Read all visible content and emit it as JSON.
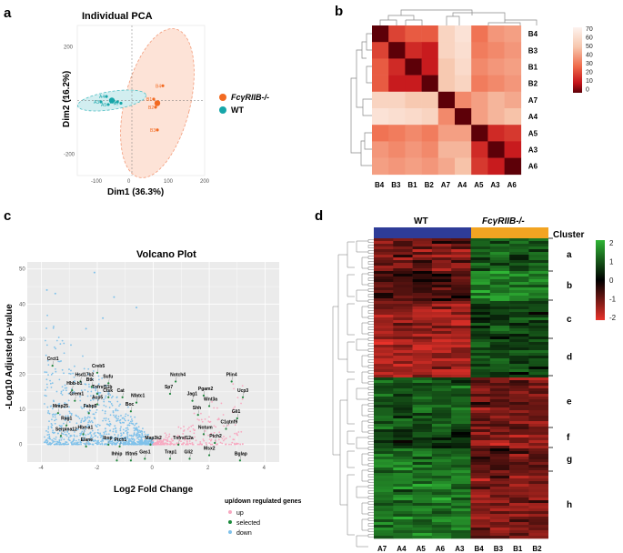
{
  "chart_data": [
    {
      "panel": "a",
      "type": "scatter",
      "title": "Individual PCA",
      "xlabel": "Dim1 (36.3%)",
      "ylabel": "Dim2 (16.2%)",
      "xlim": [
        -150,
        200
      ],
      "ylim": [
        -280,
        280
      ],
      "xticks": [
        "-100",
        "0",
        "100",
        "200"
      ],
      "yticks": [
        "200",
        "0",
        "-200"
      ],
      "series": [
        {
          "name": "FcγRIIB-/-",
          "color": "#f26a21",
          "points": [
            {
              "label": "B4",
              "x": 85,
              "y": 55
            },
            {
              "label": "B1",
              "x": 60,
              "y": 5
            },
            {
              "label": "B2",
              "x": 65,
              "y": -25
            },
            {
              "label": "B3",
              "x": 70,
              "y": -110
            }
          ],
          "centroid": {
            "x": 70,
            "y": -10
          }
        },
        {
          "name": "WT",
          "color": "#16a6a9",
          "points": [
            {
              "label": "A4",
              "x": -70,
              "y": 15
            },
            {
              "label": "A5",
              "x": -65,
              "y": -15
            },
            {
              "label": "A6",
              "x": -40,
              "y": -5
            },
            {
              "label": "A7",
              "x": -30,
              "y": -10
            },
            {
              "label": "A3",
              "x": -85,
              "y": -5
            }
          ],
          "centroid": {
            "x": -55,
            "y": 0
          }
        }
      ],
      "legend": [
        "FcγRIIB-/-",
        "WT"
      ]
    },
    {
      "panel": "b",
      "type": "heatmap",
      "labels": [
        "B4",
        "B3",
        "B1",
        "B2",
        "A7",
        "A4",
        "A5",
        "A3",
        "A6"
      ],
      "colorbar_ticks": [
        "70",
        "60",
        "50",
        "40",
        "30",
        "20",
        "10",
        "0"
      ],
      "matrix": [
        [
          0,
          20,
          25,
          25,
          55,
          62,
          30,
          38,
          40
        ],
        [
          20,
          0,
          15,
          12,
          55,
          60,
          32,
          35,
          38
        ],
        [
          25,
          15,
          0,
          12,
          50,
          58,
          35,
          38,
          40
        ],
        [
          25,
          12,
          12,
          0,
          50,
          55,
          32,
          35,
          38
        ],
        [
          55,
          55,
          50,
          50,
          0,
          35,
          40,
          45,
          42
        ],
        [
          62,
          60,
          58,
          55,
          35,
          0,
          40,
          45,
          48
        ],
        [
          30,
          32,
          35,
          32,
          40,
          40,
          0,
          15,
          18
        ],
        [
          38,
          35,
          38,
          35,
          45,
          45,
          15,
          0,
          12
        ],
        [
          40,
          38,
          40,
          38,
          42,
          48,
          18,
          12,
          0
        ]
      ]
    },
    {
      "panel": "c",
      "type": "scatter",
      "title": "Volcano Plot",
      "xlabel": "Log2 Fold Change",
      "ylabel": "-Log10 Adjusted p-value",
      "xlim": [
        -4.5,
        4.5
      ],
      "ylim": [
        -5,
        52
      ],
      "xticks": [
        "-4",
        "-2",
        "0",
        "2",
        "4"
      ],
      "yticks": [
        "50",
        "40",
        "30",
        "20",
        "10",
        "0"
      ],
      "legend_title": "up/down regulated genes",
      "legend": [
        {
          "name": "up",
          "color": "#f7a8c0"
        },
        {
          "name": "selected",
          "color": "#1a8a3a"
        },
        {
          "name": "down",
          "color": "#7fc1ea"
        }
      ],
      "genes_labeled": [
        {
          "name": "Crct1",
          "x": -3.6,
          "y": 24
        },
        {
          "name": "Creb5",
          "x": -2.0,
          "y": 22
        },
        {
          "name": "Hsd17b2",
          "x": -2.6,
          "y": 19.5
        },
        {
          "name": "Btk",
          "x": -2.2,
          "y": 18
        },
        {
          "name": "Hbb-b1",
          "x": -2.9,
          "y": 17
        },
        {
          "name": "Sufu",
          "x": -1.6,
          "y": 19
        },
        {
          "name": "Tnfrsf11b",
          "x": -2.0,
          "y": 16
        },
        {
          "name": "Ctsk",
          "x": -1.6,
          "y": 15
        },
        {
          "name": "Grem1",
          "x": -2.8,
          "y": 14
        },
        {
          "name": "Acp5",
          "x": -2.0,
          "y": 13
        },
        {
          "name": "Cat",
          "x": -1.1,
          "y": 15
        },
        {
          "name": "Fabp5",
          "x": -2.3,
          "y": 10.5
        },
        {
          "name": "Mmp25",
          "x": -3.4,
          "y": 10.5
        },
        {
          "name": "Boc",
          "x": -0.8,
          "y": 11
        },
        {
          "name": "Nfatc1",
          "x": -0.6,
          "y": 13.5
        },
        {
          "name": "Rag1",
          "x": -3.1,
          "y": 7
        },
        {
          "name": "Hbe-a1",
          "x": -2.5,
          "y": 4.5
        },
        {
          "name": "Serpina12",
          "x": -3.3,
          "y": 4
        },
        {
          "name": "Ibsp",
          "x": -1.6,
          "y": 1.5
        },
        {
          "name": "Elane",
          "x": -2.4,
          "y": 1
        },
        {
          "name": "Ptch1",
          "x": -1.2,
          "y": 1
        },
        {
          "name": "Map3k2",
          "x": -0.1,
          "y": 1.5
        },
        {
          "name": "Ihhip",
          "x": -1.3,
          "y": -3
        },
        {
          "name": "Ifitm5",
          "x": -0.8,
          "y": -3
        },
        {
          "name": "Gas1",
          "x": -0.3,
          "y": -2.5
        },
        {
          "name": "Notch4",
          "x": 0.8,
          "y": 19.5
        },
        {
          "name": "Sp7",
          "x": 0.6,
          "y": 16
        },
        {
          "name": "Jag1",
          "x": 1.4,
          "y": 14
        },
        {
          "name": "Pgam2",
          "x": 1.8,
          "y": 15.5
        },
        {
          "name": "Plin4",
          "x": 2.8,
          "y": 19.5
        },
        {
          "name": "Ucp3",
          "x": 3.2,
          "y": 15
        },
        {
          "name": "Wnt3a",
          "x": 2.0,
          "y": 12.5
        },
        {
          "name": "Shh",
          "x": 1.6,
          "y": 10
        },
        {
          "name": "Gli1",
          "x": 3.0,
          "y": 9
        },
        {
          "name": "C1qtnf9",
          "x": 2.6,
          "y": 6
        },
        {
          "name": "Notum",
          "x": 1.8,
          "y": 4.5
        },
        {
          "name": "Tnfrsf12a",
          "x": 0.9,
          "y": 1.5
        },
        {
          "name": "Ptch2",
          "x": 2.2,
          "y": 2
        },
        {
          "name": "Trap1",
          "x": 0.6,
          "y": -2.5
        },
        {
          "name": "Gli2",
          "x": 1.3,
          "y": -2.5
        },
        {
          "name": "Msx2",
          "x": 2.0,
          "y": -1.5
        },
        {
          "name": "Bglap",
          "x": 3.1,
          "y": -3
        }
      ]
    },
    {
      "panel": "d",
      "type": "heatmap",
      "group_labels": [
        "WT",
        "FcγRIIB-/-"
      ],
      "group_colors": [
        "#2e3c98",
        "#f2a422"
      ],
      "columns": [
        "A7",
        "A4",
        "A5",
        "A6",
        "A3",
        "B4",
        "B3",
        "B1",
        "B2"
      ],
      "cluster_title": "Cluster",
      "clusters": [
        "a",
        "b",
        "c",
        "d",
        "e",
        "f",
        "g",
        "h"
      ],
      "colorbar_ticks": [
        "2",
        "1",
        "0",
        "-1",
        "-2"
      ],
      "colors": {
        "low": "#e8322a",
        "mid": "#000000",
        "high": "#2fb535"
      }
    }
  ],
  "panel_labels": [
    "a",
    "b",
    "c",
    "d"
  ]
}
